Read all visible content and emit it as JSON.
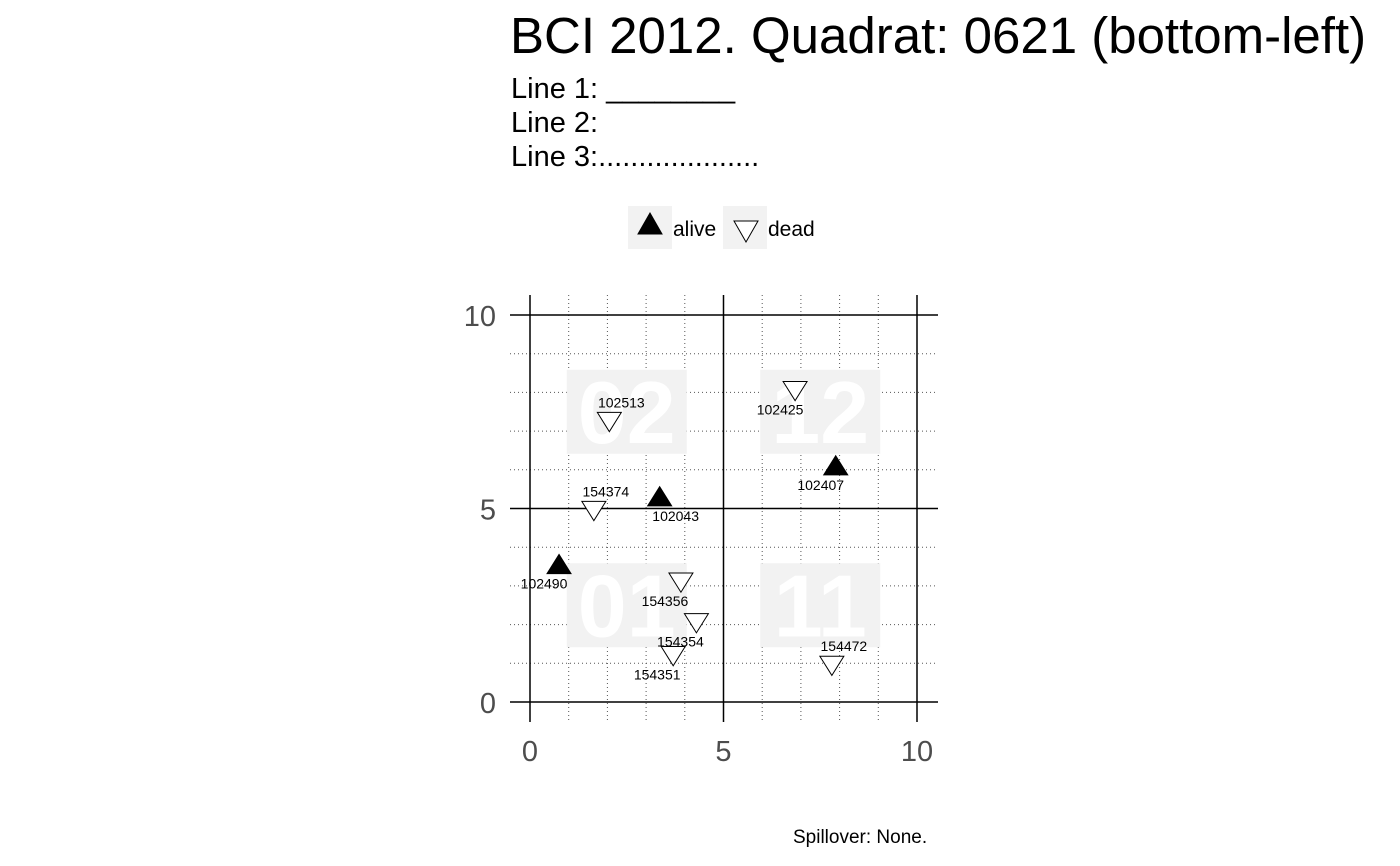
{
  "title": "BCI 2012. Quadrat:  0621 (bottom-left)",
  "lines": {
    "line1": "Line 1: ________",
    "line2": "Line 2:",
    "line3": "Line 3:...................."
  },
  "caption": "Spillover: None.",
  "colors": {
    "alive": "#000000",
    "dead": "#ffffff",
    "legend_key_bg": "#f2f2f2",
    "quadrant_label": "#f2f2f2",
    "axis_text": "#4d4d4d"
  },
  "chart_data": {
    "type": "scatter",
    "title": "BCI 2012. Quadrat:  0621 (bottom-left)",
    "xlabel": "",
    "ylabel": "",
    "xlim": [
      0,
      10
    ],
    "ylim": [
      0,
      10
    ],
    "x_ticks": [
      0,
      5,
      10
    ],
    "y_ticks": [
      0,
      5,
      10
    ],
    "x_tick_labels": [
      "0",
      "5",
      "10"
    ],
    "y_tick_labels": [
      "0",
      "5",
      "10"
    ],
    "grid": true,
    "legend": {
      "position": "top",
      "entries": [
        {
          "label": "alive",
          "shape": "filled-up-triangle"
        },
        {
          "label": "dead",
          "shape": "open-down-triangle"
        }
      ]
    },
    "quadrant_labels": [
      {
        "text": "01",
        "x": 2.5,
        "y": 2.5
      },
      {
        "text": "02",
        "x": 2.5,
        "y": 7.5
      },
      {
        "text": "11",
        "x": 7.5,
        "y": 2.5
      },
      {
        "text": "12",
        "x": 7.5,
        "y": 7.5
      }
    ],
    "points": [
      {
        "tag": "102513",
        "x": 2.05,
        "y": 7.25,
        "status": "dead"
      },
      {
        "tag": "102425",
        "x": 6.85,
        "y": 8.05,
        "status": "dead"
      },
      {
        "tag": "102407",
        "x": 7.9,
        "y": 6.1,
        "status": "alive"
      },
      {
        "tag": "154374",
        "x": 1.65,
        "y": 4.95,
        "status": "dead"
      },
      {
        "tag": "102043",
        "x": 3.35,
        "y": 5.3,
        "status": "alive"
      },
      {
        "tag": "102490",
        "x": 0.75,
        "y": 3.55,
        "status": "alive"
      },
      {
        "tag": "154356",
        "x": 3.9,
        "y": 3.1,
        "status": "dead"
      },
      {
        "tag": "154354",
        "x": 4.3,
        "y": 2.05,
        "status": "dead"
      },
      {
        "tag": "154351",
        "x": 3.7,
        "y": 1.2,
        "status": "dead"
      },
      {
        "tag": "154472",
        "x": 7.8,
        "y": 0.95,
        "status": "dead"
      }
    ]
  }
}
